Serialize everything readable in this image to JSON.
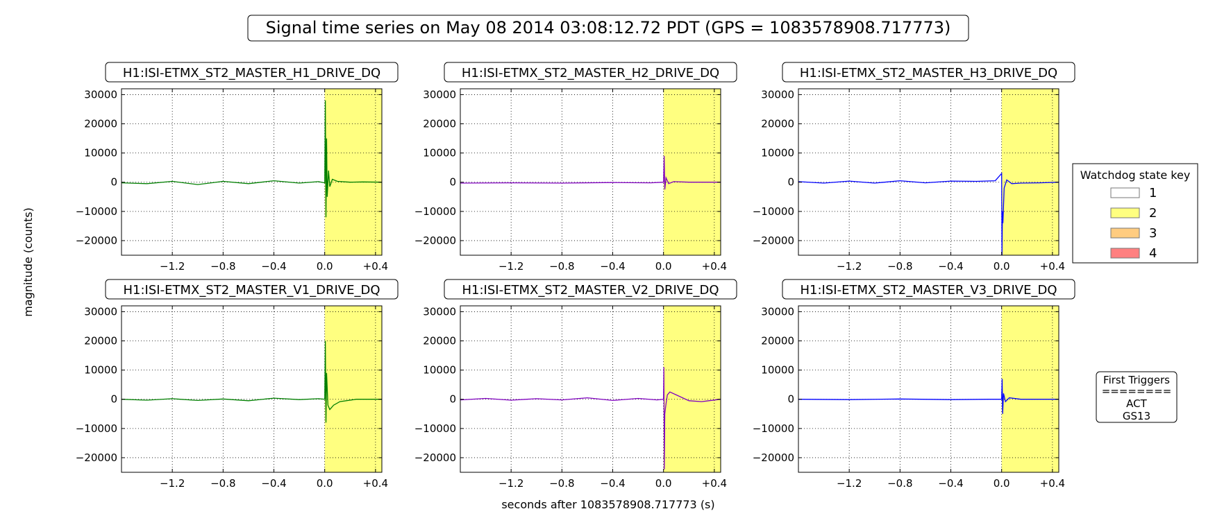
{
  "figure": {
    "title": "Signal time series on May 08 2014 03:08:12.72 PDT (GPS = 1083578908.717773)",
    "ylabel": "magnitude (counts)",
    "xlabel": "seconds after 1083578908.717773 (s)"
  },
  "legend": {
    "title": "Watchdog state key",
    "entries": [
      {
        "label": "1",
        "color": "#ffffff"
      },
      {
        "label": "2",
        "color": "#ffff80"
      },
      {
        "label": "3",
        "color": "#ffcc80"
      },
      {
        "label": "4",
        "color": "#ff8080"
      }
    ]
  },
  "first_triggers": {
    "title": "First Triggers",
    "separator": "========",
    "items": [
      "ACT",
      "GS13"
    ]
  },
  "chart_data": [
    {
      "type": "line",
      "title": "H1:ISI-ETMX_ST2_MASTER_H1_DRIVE_DQ",
      "color": "#007f00",
      "xlim": [
        -1.6,
        0.45
      ],
      "ylim": [
        -25000,
        32000
      ],
      "xticks": [
        -1.2,
        -0.8,
        -0.4,
        0.0,
        0.4
      ],
      "xticklabels": [
        "−1.2",
        "−0.8",
        "−0.4",
        "0.0",
        "+0.4"
      ],
      "yticks": [
        30000,
        20000,
        10000,
        0,
        -10000,
        -20000
      ],
      "yticklabels": [
        "30000",
        "20000",
        "10000",
        "0",
        "−10000",
        "−20000"
      ],
      "grid": true,
      "state_regions": [
        {
          "state": 2,
          "x": [
            0.0,
            0.45
          ]
        }
      ],
      "x": [
        -1.6,
        -1.4,
        -1.2,
        -1.0,
        -0.8,
        -0.6,
        -0.4,
        -0.2,
        -0.05,
        0.0,
        0.005,
        0.01,
        0.015,
        0.02,
        0.03,
        0.04,
        0.06,
        0.1,
        0.2,
        0.3,
        0.45
      ],
      "y": [
        -200,
        -500,
        300,
        -800,
        300,
        -500,
        500,
        -300,
        200,
        -200,
        28000,
        -12000,
        15000,
        -5000,
        4000,
        -1500,
        1000,
        300,
        0,
        100,
        0
      ]
    },
    {
      "type": "line",
      "title": "H1:ISI-ETMX_ST2_MASTER_H2_DRIVE_DQ",
      "color": "#7f00bf",
      "xlim": [
        -1.6,
        0.45
      ],
      "ylim": [
        -25000,
        32000
      ],
      "xticks": [
        -1.2,
        -0.8,
        -0.4,
        0.0,
        0.4
      ],
      "xticklabels": [
        "−1.2",
        "−0.8",
        "−0.4",
        "0.0",
        "+0.4"
      ],
      "yticks": [
        30000,
        20000,
        10000,
        0,
        -10000,
        -20000
      ],
      "yticklabels": [
        "30000",
        "20000",
        "10000",
        "0",
        "−10000",
        "−20000"
      ],
      "grid": true,
      "state_regions": [
        {
          "state": 2,
          "x": [
            0.0,
            0.45
          ]
        }
      ],
      "x": [
        -1.6,
        -1.2,
        -0.8,
        -0.4,
        -0.1,
        0.0,
        0.005,
        0.01,
        0.02,
        0.04,
        0.08,
        0.2,
        0.45
      ],
      "y": [
        -300,
        -200,
        -300,
        -100,
        -200,
        0,
        9000,
        -2500,
        1500,
        -500,
        200,
        0,
        0
      ]
    },
    {
      "type": "line",
      "title": "H1:ISI-ETMX_ST2_MASTER_H3_DRIVE_DQ",
      "color": "#0000ff",
      "xlim": [
        -1.6,
        0.45
      ],
      "ylim": [
        -25000,
        32000
      ],
      "xticks": [
        -1.2,
        -0.8,
        -0.4,
        0.0,
        0.4
      ],
      "xticklabels": [
        "−1.2",
        "−0.8",
        "−0.4",
        "0.0",
        "+0.4"
      ],
      "yticks": [
        30000,
        20000,
        10000,
        0,
        -10000,
        -20000
      ],
      "yticklabels": [
        "30000",
        "20000",
        "10000",
        "0",
        "−10000",
        "−20000"
      ],
      "grid": true,
      "state_regions": [
        {
          "state": 2,
          "x": [
            0.0,
            0.45
          ]
        }
      ],
      "x": [
        -1.6,
        -1.4,
        -1.2,
        -1.0,
        -0.8,
        -0.6,
        -0.4,
        -0.2,
        -0.05,
        0.0,
        0.003,
        0.006,
        0.01,
        0.02,
        0.04,
        0.08,
        0.15,
        0.3,
        0.45
      ],
      "y": [
        200,
        -300,
        400,
        -300,
        500,
        -200,
        400,
        300,
        500,
        3000,
        -25000,
        -10000,
        -14000,
        -2000,
        800,
        -500,
        -300,
        -200,
        0
      ]
    },
    {
      "type": "line",
      "title": "H1:ISI-ETMX_ST2_MASTER_V1_DRIVE_DQ",
      "color": "#007f00",
      "xlim": [
        -1.6,
        0.45
      ],
      "ylim": [
        -25000,
        32000
      ],
      "xticks": [
        -1.2,
        -0.8,
        -0.4,
        0.0,
        0.4
      ],
      "xticklabels": [
        "−1.2",
        "−0.8",
        "−0.4",
        "0.0",
        "+0.4"
      ],
      "yticks": [
        30000,
        20000,
        10000,
        0,
        -10000,
        -20000
      ],
      "yticklabels": [
        "30000",
        "20000",
        "10000",
        "0",
        "−10000",
        "−20000"
      ],
      "grid": true,
      "state_regions": [
        {
          "state": 2,
          "x": [
            0.0,
            0.45
          ]
        }
      ],
      "x": [
        -1.6,
        -1.4,
        -1.2,
        -1.0,
        -0.8,
        -0.6,
        -0.4,
        -0.2,
        -0.05,
        0.0,
        0.005,
        0.01,
        0.015,
        0.025,
        0.04,
        0.07,
        0.12,
        0.25,
        0.45
      ],
      "y": [
        0,
        -300,
        200,
        -400,
        100,
        -500,
        400,
        -100,
        200,
        0,
        20000,
        -8000,
        9000,
        -2000,
        -3500,
        -2000,
        -800,
        0,
        0
      ]
    },
    {
      "type": "line",
      "title": "H1:ISI-ETMX_ST2_MASTER_V2_DRIVE_DQ",
      "color": "#7f00bf",
      "xlim": [
        -1.6,
        0.45
      ],
      "ylim": [
        -25000,
        32000
      ],
      "xticks": [
        -1.2,
        -0.8,
        -0.4,
        0.0,
        0.4
      ],
      "xticklabels": [
        "−1.2",
        "−0.8",
        "−0.4",
        "0.0",
        "+0.4"
      ],
      "yticks": [
        30000,
        20000,
        10000,
        0,
        -10000,
        -20000
      ],
      "yticklabels": [
        "30000",
        "20000",
        "10000",
        "0",
        "−10000",
        "−20000"
      ],
      "grid": true,
      "state_regions": [
        {
          "state": 2,
          "x": [
            0.0,
            0.45
          ]
        }
      ],
      "x": [
        -1.6,
        -1.4,
        -1.2,
        -1.0,
        -0.8,
        -0.6,
        -0.4,
        -0.2,
        -0.05,
        0.0,
        0.003,
        0.006,
        0.01,
        0.02,
        0.03,
        0.05,
        0.1,
        0.2,
        0.3,
        0.45
      ],
      "y": [
        -200,
        300,
        -300,
        200,
        -200,
        500,
        -400,
        300,
        -200,
        0,
        11000,
        -24000,
        -5000,
        -1500,
        1500,
        2500,
        1500,
        -500,
        -800,
        0
      ]
    },
    {
      "type": "line",
      "title": "H1:ISI-ETMX_ST2_MASTER_V3_DRIVE_DQ",
      "color": "#0000ff",
      "xlim": [
        -1.6,
        0.45
      ],
      "ylim": [
        -25000,
        32000
      ],
      "xticks": [
        -1.2,
        -0.8,
        -0.4,
        0.0,
        0.4
      ],
      "xticklabels": [
        "−1.2",
        "−0.8",
        "−0.4",
        "0.0",
        "+0.4"
      ],
      "yticks": [
        30000,
        20000,
        10000,
        0,
        -10000,
        -20000
      ],
      "yticklabels": [
        "30000",
        "20000",
        "10000",
        "0",
        "−10000",
        "−20000"
      ],
      "grid": true,
      "state_regions": [
        {
          "state": 2,
          "x": [
            0.0,
            0.45
          ]
        }
      ],
      "x": [
        -1.6,
        -1.2,
        -0.8,
        -0.4,
        -0.1,
        0.0,
        0.004,
        0.008,
        0.015,
        0.03,
        0.06,
        0.15,
        0.45
      ],
      "y": [
        0,
        -100,
        100,
        -100,
        0,
        0,
        7000,
        -5000,
        2000,
        -800,
        500,
        0,
        0
      ]
    }
  ]
}
